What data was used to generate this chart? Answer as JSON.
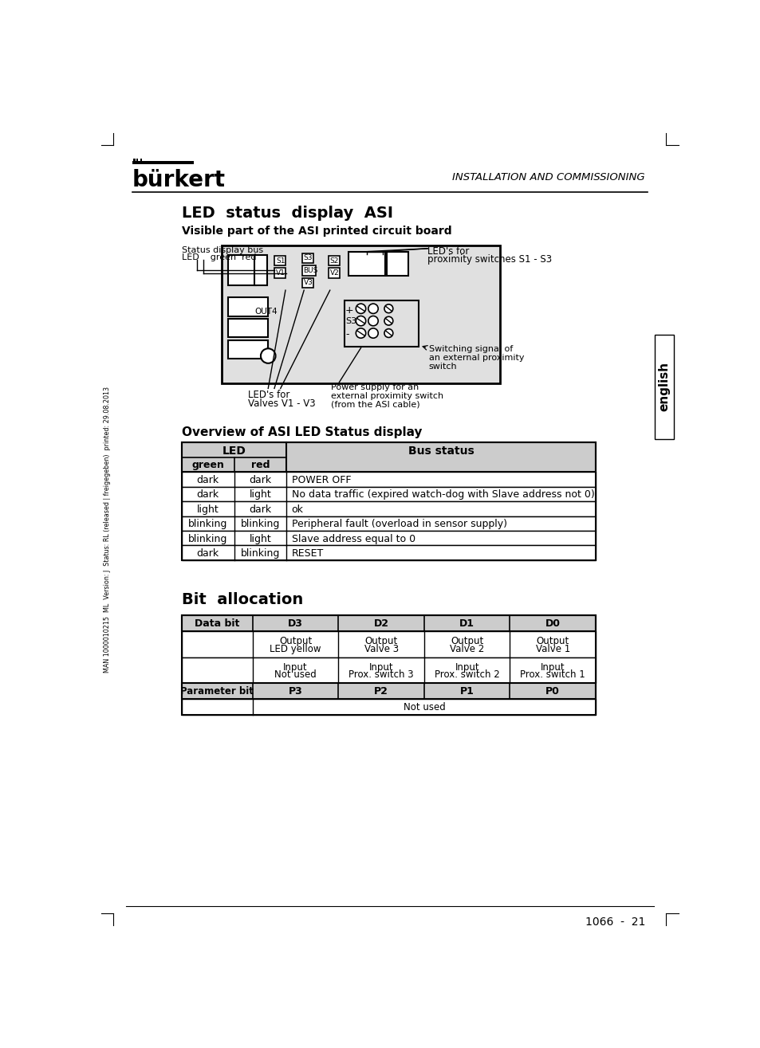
{
  "page_title": "LED  status  display  ASI",
  "section1_subtitle": "Visible part of the ASI printed circuit board",
  "section2_title": "Overview of ASI LED Status display",
  "section3_title": "Bit  allocation",
  "header_text": "INSTALLATION AND COMMISSIONING",
  "brand": "bürkert",
  "page_number": "1066  -  21",
  "sidebar_text": "english",
  "footer_left": "MAN 1000010215  ML  Version: J  Status: RL (released | freigegeben)  printed: 29.08.2013",
  "led_rows": [
    [
      "dark",
      "dark",
      "POWER OFF"
    ],
    [
      "dark",
      "light",
      "No data traffic (expired watch-dog with Slave address not 0)"
    ],
    [
      "light",
      "dark",
      "ok"
    ],
    [
      "blinking",
      "blinking",
      "Peripheral fault (overload in sensor supply)"
    ],
    [
      "blinking",
      "light",
      "Slave address equal to 0"
    ],
    [
      "dark",
      "blinking",
      "RESET"
    ]
  ],
  "bit_table_headers": [
    "Data bit",
    "D3",
    "D2",
    "D1",
    "D0"
  ],
  "bit_row1": [
    "Output\nLED yellow",
    "Output\nValve 3",
    "Output\nValve 2",
    "Output\nValve 1"
  ],
  "bit_row2": [
    "Input\nNot used",
    "Input\nProx. switch 3",
    "Input\nProx. switch 2",
    "Input\nProx. switch 1"
  ],
  "bit_row3_labels": [
    "Parameter bit",
    "P3",
    "P2",
    "P1",
    "P0"
  ],
  "bg_color": "#ffffff"
}
